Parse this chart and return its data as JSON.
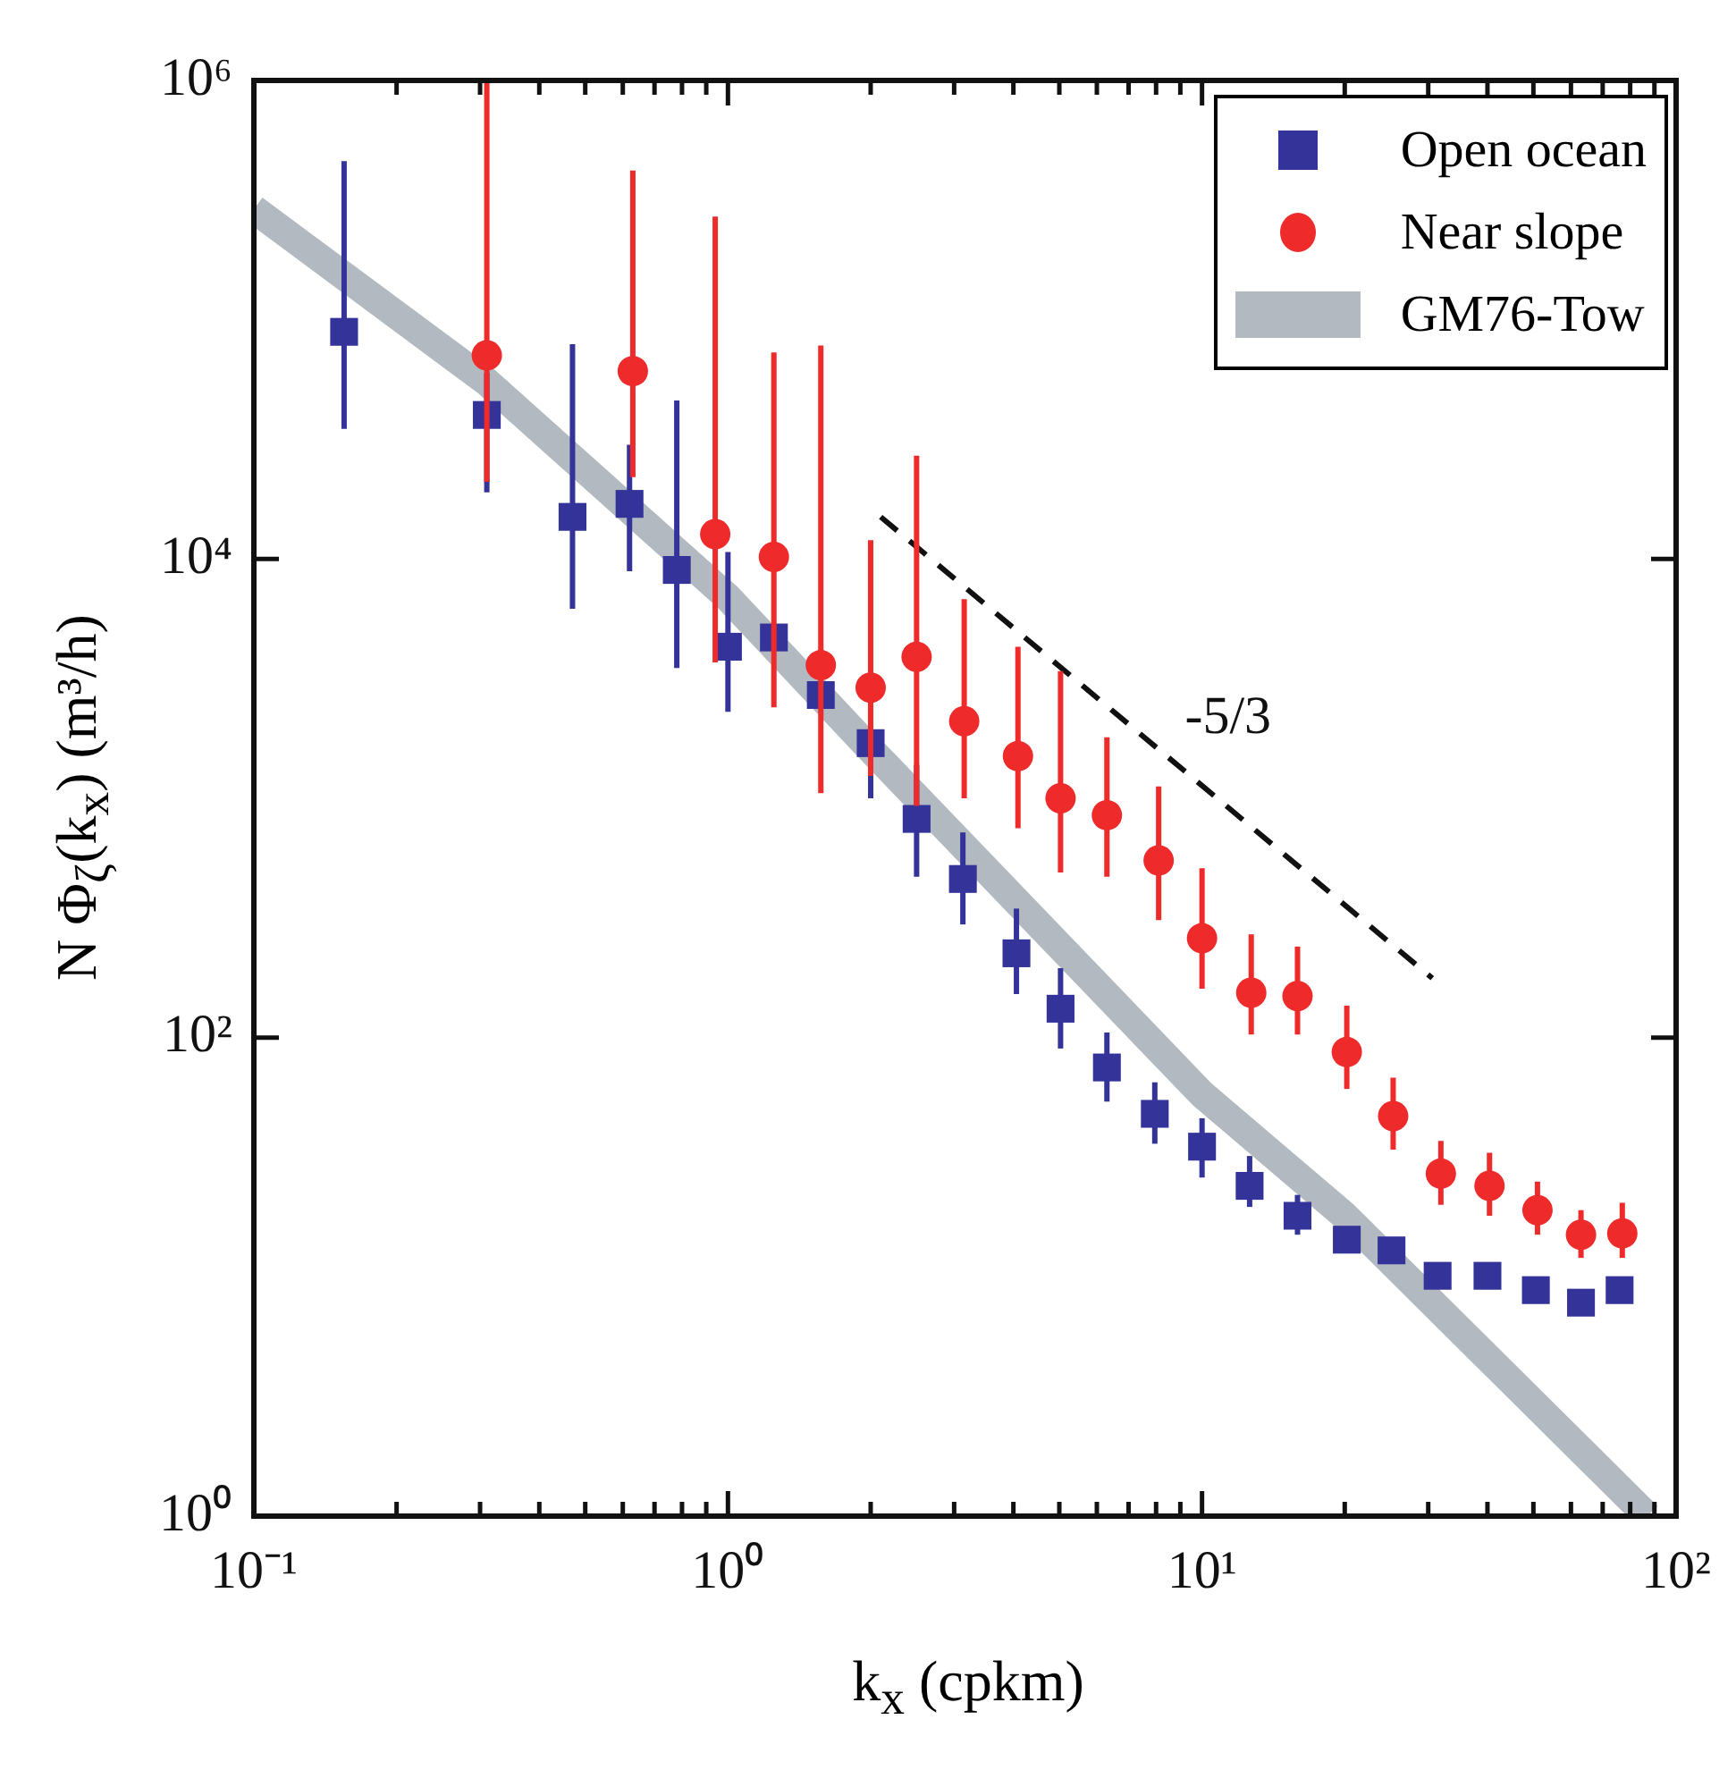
{
  "chart_data": {
    "type": "scatter",
    "xlabel": "k$_{x}$ (cpkm)",
    "ylabel": "N Φ$_{ζ}$(k$_{x}$) (m³/h)",
    "log": "xy",
    "legend": "top right",
    "xlim": [
      0.1,
      100
    ],
    "ylim": [
      1,
      1000000
    ],
    "xticks": [
      {
        "value": 0.1,
        "label": "10⁻¹"
      },
      {
        "value": 0.2,
        "label": null
      },
      {
        "value": 0.3,
        "label": null
      },
      {
        "value": 0.4,
        "label": null
      },
      {
        "value": 0.5,
        "label": null
      },
      {
        "value": 0.6,
        "label": null
      },
      {
        "value": 0.7,
        "label": null
      },
      {
        "value": 0.8,
        "label": null
      },
      {
        "value": 0.9,
        "label": null
      },
      {
        "value": 1,
        "label": "10⁰"
      },
      {
        "value": 2,
        "label": null
      },
      {
        "value": 3,
        "label": null
      },
      {
        "value": 4,
        "label": null
      },
      {
        "value": 5,
        "label": null
      },
      {
        "value": 6,
        "label": null
      },
      {
        "value": 7,
        "label": null
      },
      {
        "value": 8,
        "label": null
      },
      {
        "value": 9,
        "label": null
      },
      {
        "value": 10,
        "label": "10¹"
      },
      {
        "value": 20,
        "label": null
      },
      {
        "value": 30,
        "label": null
      },
      {
        "value": 40,
        "label": null
      },
      {
        "value": 50,
        "label": null
      },
      {
        "value": 60,
        "label": null
      },
      {
        "value": 70,
        "label": null
      },
      {
        "value": 80,
        "label": null
      },
      {
        "value": 90,
        "label": null
      },
      {
        "value": 100,
        "label": "10²"
      }
    ],
    "yticks": [
      {
        "value": 1,
        "label": "10⁰"
      },
      {
        "value": 100,
        "label": "10²"
      },
      {
        "value": 10000,
        "label": "10⁴"
      },
      {
        "value": 1000000,
        "label": "10⁶"
      }
    ],
    "annotations": [
      "-5/3"
    ],
    "series": [
      {
        "name": "Open ocean",
        "marker": "square",
        "color": "#333399",
        "x": [
          0.155,
          0.31,
          0.47,
          0.62,
          0.78,
          1.0,
          1.25,
          1.57,
          2.0,
          2.5,
          3.13,
          4.06,
          5.03,
          6.3,
          7.95,
          10,
          12.6,
          15.9,
          20.2,
          25.1,
          31.4,
          40,
          50.6,
          63,
          76
        ],
        "values": [
          89000,
          40000,
          15000,
          17000,
          9000,
          4300,
          4700,
          2700,
          1700,
          820,
          460,
          225,
          132,
          75,
          48,
          35,
          24,
          18,
          14.3,
          12.9,
          10.1,
          10.1,
          8.8,
          7.8,
          8.8
        ],
        "errors": [
          [
            35000,
            460000
          ],
          [
            19000,
            60000
          ],
          [
            6200,
            79000
          ],
          [
            8900,
            30000
          ],
          [
            3500,
            46000
          ],
          [
            2300,
            10700
          ],
          null,
          null,
          [
            1000,
            1700
          ],
          [
            470,
            1380
          ],
          [
            297,
            720
          ],
          [
            152,
            346
          ],
          [
            90,
            195
          ],
          [
            54,
            105
          ],
          [
            36,
            65
          ],
          [
            26,
            46
          ],
          [
            19.6,
            32
          ],
          [
            15,
            22
          ],
          null,
          null,
          null,
          null,
          null,
          null,
          null
        ]
      },
      {
        "name": "Near slope",
        "marker": "circle",
        "color": "#ee2a2a",
        "x": [
          0.31,
          0.63,
          0.94,
          1.25,
          1.57,
          2.0,
          2.5,
          3.15,
          4.09,
          5.03,
          6.3,
          8.1,
          10,
          12.7,
          15.9,
          20.2,
          25.3,
          31.9,
          40.4,
          51,
          63,
          77
        ],
        "values": [
          71000,
          61000,
          12700,
          10200,
          3600,
          2900,
          3900,
          2100,
          1500,
          1000,
          850,
          550,
          260,
          154,
          149,
          87,
          47,
          27,
          24,
          19,
          15,
          15.2
        ],
        "errors": [
          [
            21000,
            1000000
          ],
          [
            22000,
            420000
          ],
          [
            3700,
            270000
          ],
          [
            2400,
            73000
          ],
          [
            1050,
            78000
          ],
          [
            1240,
            12000
          ],
          [
            930,
            27000
          ],
          [
            1000,
            6800
          ],
          [
            750,
            4300
          ],
          [
            490,
            3400
          ],
          [
            470,
            1800
          ],
          [
            310,
            1120
          ],
          [
            160,
            510
          ],
          [
            103,
            270
          ],
          [
            103,
            240
          ],
          [
            61,
            136
          ],
          [
            34,
            68
          ],
          [
            20,
            37
          ],
          [
            18,
            33
          ],
          [
            15,
            25
          ],
          [
            12,
            19
          ],
          [
            12,
            20.4
          ]
        ]
      },
      {
        "name": "GM76-Tow",
        "type": "line",
        "color": "#b3b9c0",
        "x": [
          0.1,
          0.31,
          1.0,
          2.0,
          10,
          20,
          87
        ],
        "values": [
          290000,
          55000,
          6900,
          1600,
          58,
          18,
          1
        ]
      },
      {
        "type": "line",
        "line_style": "dashed",
        "color": "#111111",
        "x": [
          2.1,
          30.6
        ],
        "values": [
          15000,
          177
        ]
      }
    ]
  }
}
